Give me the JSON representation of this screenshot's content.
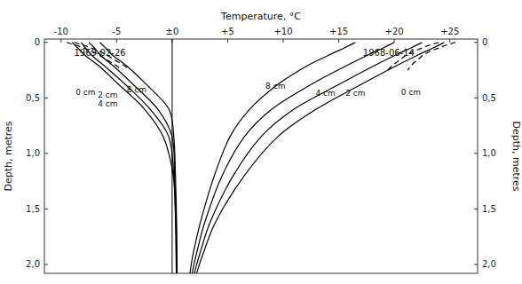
{
  "chart_data": {
    "type": "line",
    "x_label": "Temperature, °C",
    "y_label": "Depth, metres",
    "y2_label": "Depth, metres",
    "xlim": [
      -11.5,
      27.5
    ],
    "xticks": [
      -10,
      {
        "value": -5,
        "label": "-5"
      },
      {
        "value": 0,
        "label": "±0"
      },
      {
        "value": 5,
        "label": "+5"
      },
      {
        "value": 10,
        "label": "+10"
      },
      {
        "value": 15,
        "label": "+15"
      },
      {
        "value": 20,
        "label": "+20"
      },
      {
        "value": 25,
        "label": "+25"
      }
    ],
    "ylim": [
      2.08,
      -0.03
    ],
    "yticks": [
      0,
      {
        "value": 0.5,
        "label": "0,5"
      },
      {
        "value": 1.0,
        "label": "1,0"
      },
      {
        "value": 1.5,
        "label": "1,5"
      },
      {
        "value": 2.0,
        "label": "2,0"
      }
    ],
    "y2lim": [
      2.08,
      -0.03
    ],
    "y2ticks": [
      0,
      {
        "value": 0.5,
        "label": "0,5"
      },
      {
        "value": 1.0,
        "label": "1,0"
      },
      {
        "value": 1.5,
        "label": "1,5"
      },
      {
        "value": 2.0,
        "label": "2,0"
      }
    ],
    "grid": false,
    "vline": 0,
    "vline_color": "#000000",
    "series": [
      {
        "color": "#000000",
        "line_style": "solid",
        "x": [
          -9.0,
          -8.5,
          -7.8,
          -6.5,
          -4.8,
          -2.5,
          -0.8,
          0.1,
          0.3,
          0.35,
          0.38
        ],
        "values": [
          0.0,
          0.05,
          0.12,
          0.22,
          0.38,
          0.6,
          0.85,
          1.2,
          1.6,
          1.9,
          2.08
        ]
      },
      {
        "color": "#000000",
        "line_style": "solid",
        "x": [
          -8.2,
          -7.8,
          -7.2,
          -6.0,
          -4.2,
          -2.0,
          -0.3,
          0.15,
          0.32,
          0.38,
          0.4
        ],
        "values": [
          0.0,
          0.05,
          0.12,
          0.22,
          0.38,
          0.6,
          0.85,
          1.2,
          1.6,
          1.9,
          2.08
        ]
      },
      {
        "color": "#000000",
        "line_style": "solid",
        "x": [
          -7.5,
          -7.0,
          -6.4,
          -5.2,
          -3.5,
          -1.3,
          0.0,
          0.22,
          0.36,
          0.4,
          0.42
        ],
        "values": [
          0.0,
          0.05,
          0.12,
          0.22,
          0.38,
          0.6,
          0.85,
          1.2,
          1.6,
          1.9,
          2.08
        ]
      },
      {
        "color": "#000000",
        "line_style": "solid",
        "x": [
          -6.5,
          -6.0,
          -5.3,
          -4.0,
          -2.3,
          -0.3,
          0.15,
          0.3,
          0.4,
          0.44,
          0.45
        ],
        "values": [
          0.0,
          0.05,
          0.12,
          0.22,
          0.38,
          0.6,
          0.85,
          1.2,
          1.6,
          1.9,
          2.08
        ]
      },
      {
        "color": "#000000",
        "line_style": "solid",
        "x": [
          24.5,
          23.5,
          22.0,
          20.0,
          17.0,
          13.0,
          9.5,
          6.5,
          4.0,
          2.8,
          2.2
        ],
        "values": [
          0.0,
          0.05,
          0.12,
          0.22,
          0.38,
          0.6,
          0.85,
          1.2,
          1.6,
          1.9,
          2.08
        ]
      },
      {
        "color": "#000000",
        "line_style": "solid",
        "x": [
          22.5,
          21.5,
          20.0,
          18.0,
          15.0,
          11.0,
          8.0,
          5.5,
          3.5,
          2.5,
          2.0
        ],
        "values": [
          0.0,
          0.05,
          0.12,
          0.22,
          0.38,
          0.6,
          0.85,
          1.2,
          1.6,
          1.9,
          2.08
        ]
      },
      {
        "color": "#000000",
        "line_style": "solid",
        "x": [
          20.0,
          19.0,
          17.5,
          15.5,
          12.5,
          9.0,
          6.5,
          4.5,
          3.0,
          2.2,
          1.8
        ],
        "values": [
          0.0,
          0.05,
          0.12,
          0.22,
          0.38,
          0.6,
          0.85,
          1.2,
          1.6,
          1.9,
          2.08
        ]
      },
      {
        "color": "#000000",
        "line_style": "solid",
        "x": [
          16.5,
          15.5,
          14.0,
          12.0,
          9.5,
          7.0,
          5.2,
          3.8,
          2.6,
          1.9,
          1.6
        ],
        "values": [
          0.0,
          0.05,
          0.12,
          0.22,
          0.38,
          0.6,
          0.85,
          1.2,
          1.6,
          1.9,
          2.08
        ]
      },
      {
        "color": "#000000",
        "line_style": "dashed",
        "x": [
          -9.5,
          -9.0,
          -8.5,
          -8.0,
          -7.5,
          -7.0,
          -6.5,
          -6.0,
          -5.5,
          -5.0,
          -4.5
        ],
        "values": [
          0.0,
          0.015,
          0.03,
          0.05,
          0.07,
          0.09,
          0.12,
          0.15,
          0.18,
          0.21,
          0.25
        ]
      },
      {
        "color": "#000000",
        "line_style": "dashed",
        "x": [
          -8.8,
          -8.3,
          -7.8,
          -7.3,
          -6.8,
          -6.3,
          -5.8,
          -5.3,
          -4.8,
          -4.3,
          -3.8
        ],
        "values": [
          0.0,
          0.015,
          0.03,
          0.05,
          0.07,
          0.09,
          0.12,
          0.15,
          0.18,
          0.21,
          0.25
        ]
      },
      {
        "color": "#000000",
        "line_style": "dashed",
        "x": [
          25.5,
          25.0,
          24.5,
          24.0,
          23.5,
          23.0,
          22.5,
          22.2,
          21.8,
          21.5,
          21.2
        ],
        "values": [
          0.0,
          0.015,
          0.03,
          0.05,
          0.07,
          0.09,
          0.12,
          0.15,
          0.18,
          0.21,
          0.25
        ]
      },
      {
        "color": "#000000",
        "line_style": "dashed",
        "x": [
          24.0,
          23.5,
          23.0,
          22.5,
          22.0,
          21.5,
          21.0,
          20.6,
          20.2,
          19.8,
          19.4
        ],
        "values": [
          0.0,
          0.015,
          0.03,
          0.05,
          0.07,
          0.09,
          0.12,
          0.15,
          0.18,
          0.21,
          0.25
        ]
      }
    ],
    "annotations": [
      {
        "text": "1969-02-26",
        "x": -6.5,
        "y": 0.09
      },
      {
        "text": "1968-06-14",
        "x": 19.5,
        "y": 0.09
      },
      {
        "text": "0 cm",
        "x": -7.8,
        "y": 0.47
      },
      {
        "text": "2 cm",
        "x": -5.8,
        "y": 0.5
      },
      {
        "text": "4 cm",
        "x": -5.8,
        "y": 0.58
      },
      {
        "text": "8 cm",
        "x": -3.2,
        "y": 0.45
      },
      {
        "text": "8 cm",
        "x": 9.3,
        "y": 0.42
      },
      {
        "text": "4 cm",
        "x": 13.8,
        "y": 0.48
      },
      {
        "text": "2 cm",
        "x": 16.5,
        "y": 0.48
      },
      {
        "text": "0 cm",
        "x": 21.5,
        "y": 0.47
      }
    ]
  }
}
